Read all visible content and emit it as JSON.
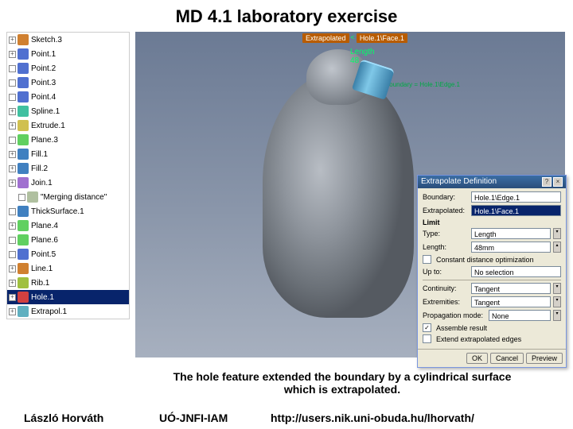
{
  "title": "MD 4.1 laboratory exercise",
  "tree": {
    "items": [
      {
        "label": "Sketch.3",
        "color": "#d08030",
        "exp": "+",
        "indent": 0
      },
      {
        "label": "Point.1",
        "color": "#5070d0",
        "exp": "+",
        "indent": 0
      },
      {
        "label": "Point.2",
        "color": "#5070d0",
        "exp": "",
        "indent": 0
      },
      {
        "label": "Point.3",
        "color": "#5070d0",
        "exp": "",
        "indent": 0
      },
      {
        "label": "Point.4",
        "color": "#5070d0",
        "exp": "",
        "indent": 0
      },
      {
        "label": "Spline.1",
        "color": "#40c0a0",
        "exp": "+",
        "indent": 0
      },
      {
        "label": "Extrude.1",
        "color": "#d0c050",
        "exp": "+",
        "indent": 0
      },
      {
        "label": "Plane.3",
        "color": "#60d060",
        "exp": "",
        "indent": 0
      },
      {
        "label": "Fill.1",
        "color": "#4080c0",
        "exp": "+",
        "indent": 0
      },
      {
        "label": "Fill.2",
        "color": "#4080c0",
        "exp": "+",
        "indent": 0
      },
      {
        "label": "Join.1",
        "color": "#a070d0",
        "exp": "+",
        "indent": 0
      },
      {
        "label": "\"Merging distance\"",
        "color": "#b0c0a0",
        "exp": "",
        "indent": 1
      },
      {
        "label": "ThickSurface.1",
        "color": "#4080c0",
        "exp": "",
        "indent": 0
      },
      {
        "label": "Plane.4",
        "color": "#60d060",
        "exp": "+",
        "indent": 0
      },
      {
        "label": "Plane.6",
        "color": "#60d060",
        "exp": "",
        "indent": 0
      },
      {
        "label": "Point.5",
        "color": "#5070d0",
        "exp": "",
        "indent": 0
      },
      {
        "label": "Line.1",
        "color": "#d08030",
        "exp": "+",
        "indent": 0
      },
      {
        "label": "Rib.1",
        "color": "#a0c040",
        "exp": "+",
        "indent": 0
      },
      {
        "label": "Hole.1",
        "color": "#d04040",
        "exp": "+",
        "indent": 0,
        "sel": true
      },
      {
        "label": "Extrapol.1",
        "color": "#60b0c0",
        "exp": "+",
        "indent": 0
      }
    ]
  },
  "viewport": {
    "bg_top": "#6b7a94",
    "bg_bot": "#a7b0bf",
    "dim_value": "48",
    "dim_name": "Length",
    "tag1": "Extrapolated",
    "tag2": "Hole.1\\Face.1",
    "boundary_tag": "Boundary = Hole.1\\Edge.1"
  },
  "dialog": {
    "title": "Extrapolate Definition",
    "boundary_label": "Boundary:",
    "boundary_value": "Hole.1\\Edge.1",
    "extrapolated_label": "Extrapolated:",
    "extrapolated_value": "Hole.1\\Face.1",
    "limit_label": "Limit",
    "type_label": "Type:",
    "type_value": "Length",
    "length_label": "Length:",
    "length_value": "48mm",
    "const_dist": "Constant distance optimization",
    "upto_label": "Up to:",
    "upto_value": "No selection",
    "continuity_label": "Continuity:",
    "continuity_value": "Tangent",
    "extremities_label": "Extremities:",
    "extremities_value": "Tangent",
    "propagation_label": "Propagation mode:",
    "propagation_value": "None",
    "assemble": "Assemble result",
    "extend": "Extend extrapolated edges",
    "ok": "OK",
    "cancel": "Cancel",
    "preview": "Preview"
  },
  "caption": "The hole feature extended the boundary by a cylindrical surface which is extrapolated.",
  "footer": {
    "author": "László Horváth",
    "inst": "UÓ-JNFI-IAM",
    "url": "http://users.nik.uni-obuda.hu/lhorvath/"
  }
}
